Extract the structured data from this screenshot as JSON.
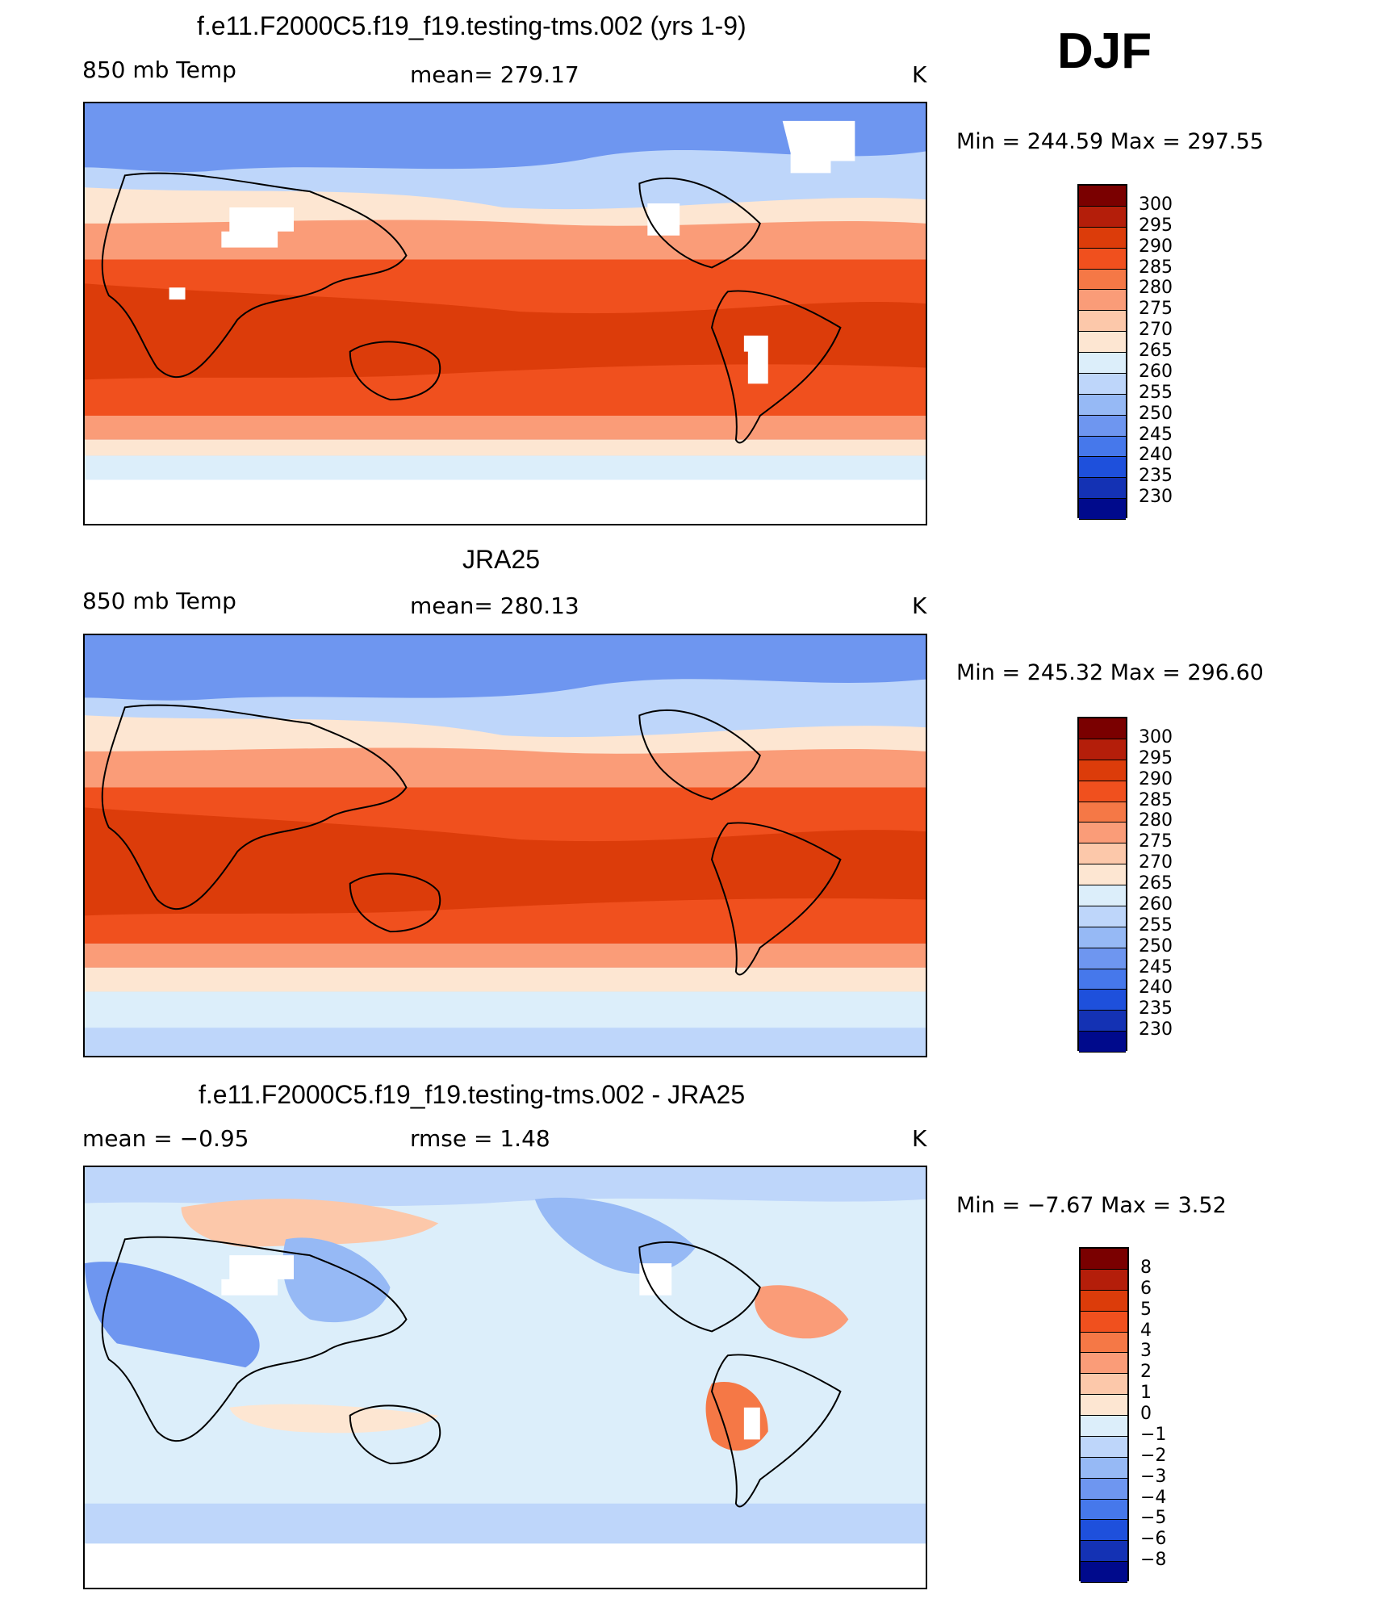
{
  "season": "DJF",
  "panels": [
    {
      "title": "f.e11.F2000C5.f19_f19.testing-tms.002 (yrs 1-9)",
      "left_label": "850 mb Temp",
      "mid_label": "mean=  279.17",
      "unit": "K",
      "minmax": "Min  =  244.59  Max  =  297.55",
      "colorbar_labels": [
        "300",
        "295",
        "290",
        "285",
        "280",
        "275",
        "270",
        "265",
        "260",
        "255",
        "250",
        "245",
        "240",
        "235",
        "230"
      ],
      "colorbar_colors": [
        "#7a0000",
        "#b41e0a",
        "#dc3c0a",
        "#f0501e",
        "#f57846",
        "#fa9c78",
        "#fcc8aa",
        "#fde6d2",
        "#dceefa",
        "#bed6fa",
        "#96b9f5",
        "#6e96f0",
        "#4678eb",
        "#1e50dc",
        "#1432b4",
        "#000a8c"
      ]
    },
    {
      "title": "JRA25",
      "left_label": "850 mb Temp",
      "mid_label": "mean=  280.13",
      "unit": "K",
      "minmax": "Min  =  245.32  Max  =  296.60",
      "colorbar_labels": [
        "300",
        "295",
        "290",
        "285",
        "280",
        "275",
        "270",
        "265",
        "260",
        "255",
        "250",
        "245",
        "240",
        "235",
        "230"
      ],
      "colorbar_colors": [
        "#7a0000",
        "#b41e0a",
        "#dc3c0a",
        "#f0501e",
        "#f57846",
        "#fa9c78",
        "#fcc8aa",
        "#fde6d2",
        "#dceefa",
        "#bed6fa",
        "#96b9f5",
        "#6e96f0",
        "#4678eb",
        "#1e50dc",
        "#1432b4",
        "#000a8c"
      ]
    },
    {
      "title": "f.e11.F2000C5.f19_f19.testing-tms.002 - JRA25",
      "left_label": "mean =    −0.95",
      "mid_label": "rmse =     1.48",
      "unit": "K",
      "minmax": "Min  =    −7.67  Max  =     3.52",
      "colorbar_labels": [
        "8",
        "6",
        "5",
        "4",
        "3",
        "2",
        "1",
        "0",
        "−1",
        "−2",
        "−3",
        "−4",
        "−5",
        "−6",
        "−8"
      ],
      "colorbar_colors": [
        "#7a0000",
        "#b41e0a",
        "#dc3c0a",
        "#f0501e",
        "#f57846",
        "#fa9c78",
        "#fcc8aa",
        "#fde6d2",
        "#dceefa",
        "#bed6fa",
        "#96b9f5",
        "#6e96f0",
        "#4678eb",
        "#1e50dc",
        "#1432b4",
        "#000a8c"
      ]
    }
  ],
  "map_colors": {
    "hot": "#dc3c0a",
    "warm": "#f0501e",
    "mild": "#fa9c78",
    "neutral": "#fde6d2",
    "cool": "#bed6fa",
    "cold": "#6e96f0",
    "missing": "#ffffff",
    "coast": "#000000"
  }
}
